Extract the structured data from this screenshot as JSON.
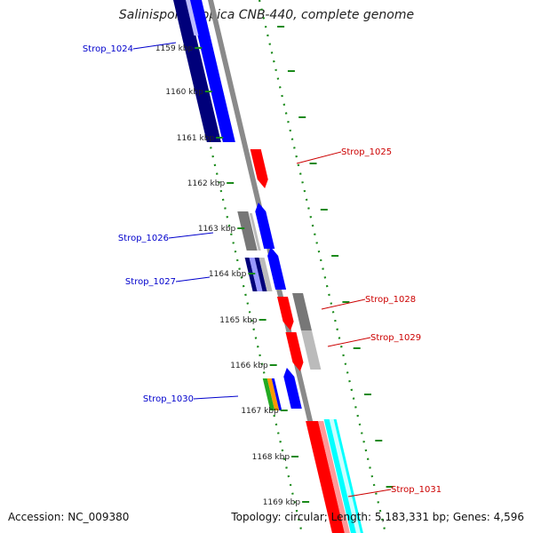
{
  "header": {
    "title": "Salinispora tropica CNB-440, complete genome"
  },
  "footer": {
    "accession": "Accession: NC_009380",
    "summary": "Topology: circular; Length: 5,183,331 bp; Genes: 4,596"
  },
  "ruler": {
    "ticks": [
      "1159 kbp",
      "1160 kbp",
      "1161 kbp",
      "1162 kbp",
      "1163 kbp",
      "1164 kbp",
      "1165 kbp",
      "1166 kbp",
      "1167 kbp",
      "1168 kbp",
      "1169 kbp"
    ]
  },
  "colors": {
    "backbone": "#8a8a8a",
    "forward": "#0000ff",
    "forward_dark": "#00007a",
    "reverse": "#ff0000",
    "grey": "#777777",
    "light_grey": "#bbbbbb",
    "cyan": "#00ffff",
    "green": "#22aa22",
    "orange": "#ff9900",
    "dots": "#1a8a1a",
    "left_label": "#0000cc",
    "right_label": "#cc0000"
  },
  "genes": {
    "left": [
      "Strop_1024",
      "Strop_1026",
      "Strop_1027",
      "Strop_1030"
    ],
    "right": [
      "Strop_1025",
      "Strop_1028",
      "Strop_1029",
      "Strop_1031"
    ]
  }
}
